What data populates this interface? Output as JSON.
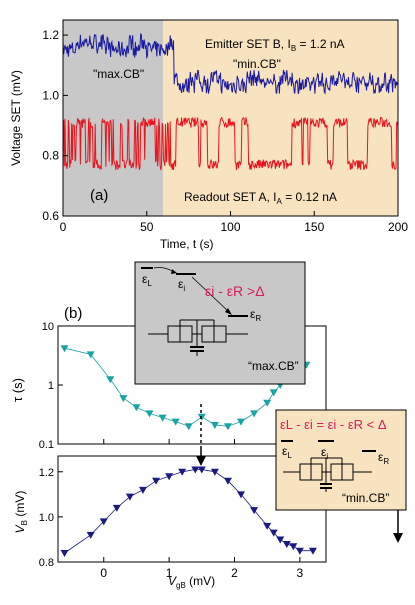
{
  "panel_a": {
    "label": "(a)",
    "xlabel": "Time, t (s)",
    "ylabel": "Voltage SET (mV)",
    "xticks": [
      "0",
      "50",
      "100",
      "150",
      "200"
    ],
    "yticks": [
      "0.6",
      "0.8",
      "1.0",
      "1.2"
    ],
    "region_left": "\"max.CB\"",
    "region_right": "\"min.CB\"",
    "emitter_label": "Emitter SET B, I",
    "emitter_sub": "B",
    "emitter_value": " = 1.2 nA",
    "readout_label": "Readout SET A, I",
    "readout_sub": "A",
    "readout_value": " = 0.12 nA"
  },
  "panel_b": {
    "label": "(b)",
    "tau_ylabel": "τ (s)",
    "tau_yticks": [
      "10",
      "1",
      "0.1"
    ],
    "vb_ylabel": "V",
    "vb_ylabel_sub": "B",
    "vb_ylabel_unit": " (mV)",
    "vb_yticks": [
      "1.2",
      "1.0",
      "0.8"
    ],
    "xticks": [
      "0",
      "1",
      "2",
      "3"
    ],
    "xlabel": "V",
    "xlabel_sub": "gB",
    "xlabel_unit": " (mV)"
  },
  "inset_max": {
    "eps_L": "ε",
    "eps_L_sub": "L",
    "eps_i": "ε",
    "eps_i_sub": "i",
    "eps_R": "ε",
    "eps_R_sub": "R",
    "condition": "ε",
    "condition_text": "i - εR >Δ",
    "caption": "“max.CB”"
  },
  "inset_min": {
    "condition": "εL - εi = εi - εR < Δ",
    "eps_L": "ε",
    "eps_L_sub": "L",
    "eps_i": "ε",
    "eps_i_sub": "i",
    "eps_R": "ε",
    "eps_R_sub": "R",
    "caption": "“min.CB”"
  },
  "colors": {
    "emitter": "#1a1aa0",
    "readout": "#e8141e",
    "tau_markers": "#1aa3a3",
    "vb_markers": "#1a1a80",
    "highlight": "#d81b5a",
    "gray_region": "#c8c8c8",
    "tan_region": "#f7e3c0"
  },
  "chart_data": [
    {
      "type": "line",
      "title": "",
      "xlabel": "Time, t (s)",
      "ylabel": "Voltage SET (mV)",
      "xlim": [
        0,
        200
      ],
      "ylim": [
        0.6,
        1.25
      ],
      "series": [
        {
          "name": "Emitter SET B, IB = 1.2 nA",
          "levels": {
            "max.CB": [
              1.13,
              1.2
            ],
            "min.CB": [
              1.01,
              1.08
            ]
          },
          "switch_t": 66
        },
        {
          "name": "Readout SET A, IA = 0.12 nA",
          "levels": [
            0.77,
            0.91
          ]
        }
      ]
    },
    {
      "type": "scatter",
      "title": "",
      "xlabel": "",
      "ylabel": "τ (s)",
      "yscale": "log",
      "ylim": [
        0.1,
        10
      ],
      "x": [
        -0.6,
        -0.2,
        0.1,
        0.3,
        0.5,
        0.7,
        0.9,
        1.1,
        1.3,
        1.5,
        1.7,
        1.9,
        2.1,
        2.3,
        2.5,
        2.6,
        2.7,
        2.8,
        2.9,
        3.0,
        3.1
      ],
      "values": [
        4.2,
        3.3,
        1.25,
        0.6,
        0.42,
        0.33,
        0.28,
        0.24,
        0.2,
        0.29,
        0.21,
        0.2,
        0.24,
        0.33,
        0.5,
        0.75,
        1.0,
        1.2,
        1.8,
        3.0,
        2.2
      ]
    },
    {
      "type": "scatter",
      "title": "",
      "xlabel": "VgB (mV)",
      "ylabel": "VB (mV)",
      "xlim": [
        -0.7,
        3.4
      ],
      "ylim": [
        0.8,
        1.27
      ],
      "x": [
        -0.6,
        -0.2,
        0.0,
        0.2,
        0.4,
        0.6,
        0.8,
        1.0,
        1.2,
        1.4,
        1.5,
        1.7,
        1.9,
        2.1,
        2.3,
        2.5,
        2.6,
        2.7,
        2.8,
        2.9,
        3.0,
        3.2
      ],
      "values": [
        0.84,
        0.92,
        0.98,
        1.04,
        1.09,
        1.12,
        1.16,
        1.18,
        1.2,
        1.21,
        1.21,
        1.2,
        1.16,
        1.1,
        1.03,
        0.96,
        0.93,
        0.9,
        0.88,
        0.87,
        0.85,
        0.85
      ]
    }
  ]
}
